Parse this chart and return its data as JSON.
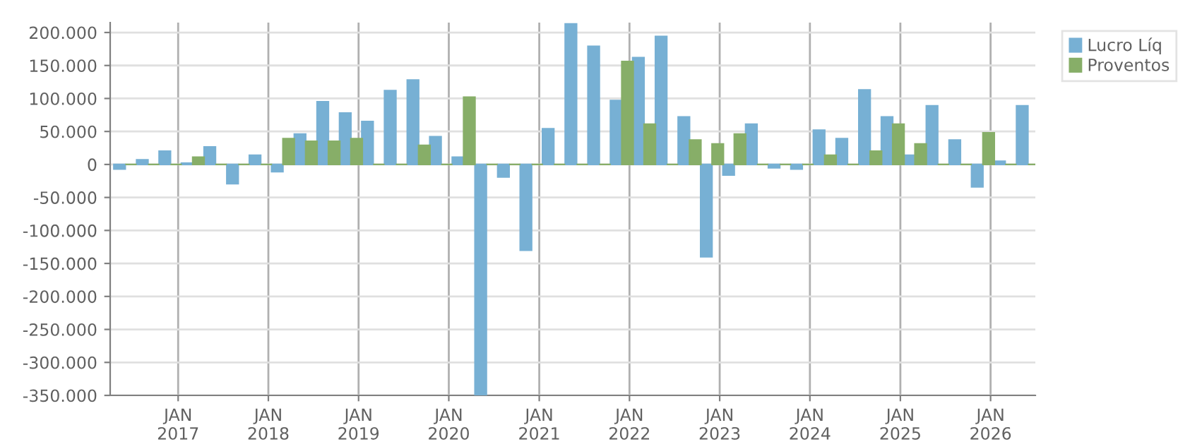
{
  "chart_data": {
    "type": "bar",
    "x": [
      "2016-06",
      "2016-09",
      "2016-12",
      "2017-03",
      "2017-06",
      "2017-09",
      "2017-12",
      "2018-03",
      "2018-06",
      "2018-09",
      "2018-12",
      "2019-03",
      "2019-06",
      "2019-09",
      "2019-12",
      "2020-03",
      "2020-06",
      "2020-09",
      "2020-12",
      "2021-03",
      "2021-06",
      "2021-09",
      "2021-12",
      "2022-03",
      "2022-06",
      "2022-09",
      "2022-12",
      "2023-03",
      "2023-06",
      "2023-09",
      "2023-12",
      "2024-03",
      "2024-06",
      "2024-09",
      "2024-12",
      "2025-03",
      "2025-06",
      "2025-09",
      "2025-12",
      "2026-03",
      "2026-06"
    ],
    "series": [
      {
        "name": "Lucro Líq",
        "color": "#77b0d4",
        "values": [
          -7000,
          7000,
          20000,
          2000,
          26500,
          -29000,
          14000,
          -11000,
          46000,
          95000,
          78000,
          65000,
          112000,
          128000,
          42000,
          11000,
          -350000,
          -19000,
          -130000,
          54000,
          213000,
          179000,
          97000,
          162000,
          194000,
          72000,
          -140000,
          -16000,
          61000,
          -5000,
          -7000,
          52000,
          39000,
          113000,
          72000,
          14000,
          89000,
          37000,
          -34000,
          5000,
          89000
        ]
      },
      {
        "name": "Proventos",
        "color": "#87ae68",
        "values": [
          0,
          0,
          0,
          11000,
          0,
          0,
          0,
          39000,
          35000,
          35000,
          39000,
          0,
          0,
          29000,
          0,
          102000,
          0,
          0,
          0,
          0,
          0,
          0,
          156000,
          61000,
          0,
          37000,
          31000,
          46000,
          0,
          0,
          0,
          14000,
          0,
          20000,
          61000,
          31000,
          0,
          0,
          48000,
          0,
          0
        ]
      }
    ],
    "xlim": [
      "2016-04",
      "2026-07"
    ],
    "xticks": [
      {
        "value": "2017-01",
        "label": "JAN\n2017"
      },
      {
        "value": "2018-01",
        "label": "JAN\n2018"
      },
      {
        "value": "2019-01",
        "label": "JAN\n2019"
      },
      {
        "value": "2020-01",
        "label": "JAN\n2020"
      },
      {
        "value": "2021-01",
        "label": "JAN\n2021"
      },
      {
        "value": "2022-01",
        "label": "JAN\n2022"
      },
      {
        "value": "2023-01",
        "label": "JAN\n2023"
      },
      {
        "value": "2024-01",
        "label": "JAN\n2024"
      },
      {
        "value": "2025-01",
        "label": "JAN\n2025"
      },
      {
        "value": "2026-01",
        "label": "JAN\n2026"
      }
    ],
    "ylim": [
      -350000,
      215000
    ],
    "yticks": [
      {
        "value": -350000,
        "label": "-350.000"
      },
      {
        "value": -300000,
        "label": "-300.000"
      },
      {
        "value": -250000,
        "label": "-250.000"
      },
      {
        "value": -200000,
        "label": "-200.000"
      },
      {
        "value": -150000,
        "label": "-150.000"
      },
      {
        "value": -100000,
        "label": "-100.000"
      },
      {
        "value": -50000,
        "label": "-50.000"
      },
      {
        "value": 0,
        "label": "0"
      },
      {
        "value": 50000,
        "label": "50.000"
      },
      {
        "value": 100000,
        "label": "100.000"
      },
      {
        "value": 150000,
        "label": "150.000"
      },
      {
        "value": 200000,
        "label": "200.000"
      }
    ],
    "grid": true,
    "legend": "top right"
  }
}
